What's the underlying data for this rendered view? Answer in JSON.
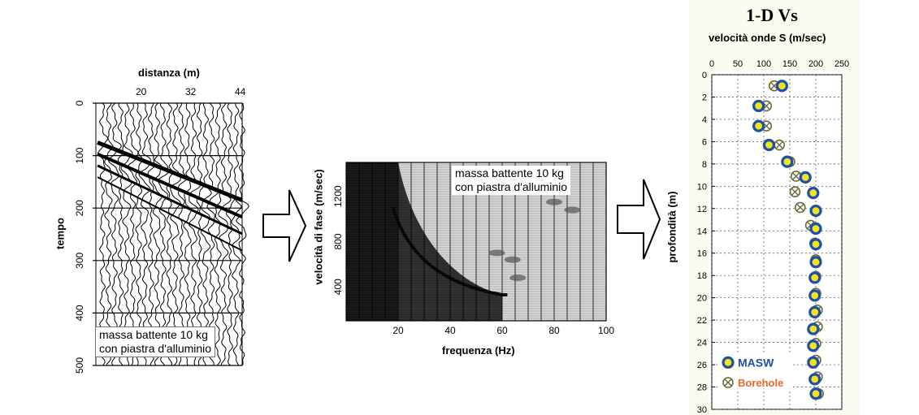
{
  "seismogram": {
    "x_axis_label": "distanza (m)",
    "x_ticks": [
      "20",
      "32",
      "44"
    ],
    "y_axis_label": "tempo",
    "y_ticks": [
      "0",
      "100",
      "200",
      "300",
      "400",
      "500"
    ],
    "note_line1": "massa battente 10 kg",
    "note_line2": "con piastra d'alluminio"
  },
  "dispersion": {
    "y_axis_label": "velocità di fase (m/sec)",
    "y_ticks": [
      "400",
      "800",
      "1200"
    ],
    "x_axis_label": "frequenza (Hz)",
    "x_ticks": [
      "20",
      "40",
      "60",
      "80",
      "100"
    ],
    "note_line1": "massa battente 10 kg",
    "note_line2": "con piastra d'alluminio"
  },
  "profile": {
    "title": "1-D Vs",
    "x_axis_label": "velocità onde S (m/sec)",
    "y_axis_label": "profondità (m)",
    "x_ticks": [
      "0",
      "50",
      "100",
      "150",
      "200",
      "250"
    ],
    "y_ticks": [
      "0",
      "2",
      "4",
      "6",
      "8",
      "10",
      "12",
      "14",
      "16",
      "18",
      "20",
      "22",
      "24",
      "26",
      "28",
      "30"
    ],
    "legend": [
      {
        "label": "MASW",
        "color": "#1f4fa8"
      },
      {
        "label": "Borehole",
        "color": "#e8692a"
      }
    ]
  },
  "chart_data": {
    "type": "scatter",
    "title": "1-D Vs",
    "xlabel": "velocità onde S (m/sec)",
    "ylabel": "profondità (m)",
    "xlim": [
      0,
      250
    ],
    "ylim": [
      0,
      30
    ],
    "y_inverted": true,
    "grid": true,
    "legend_position": "bottom-left",
    "series": [
      {
        "name": "MASW",
        "marker_color": "#1f4fa8",
        "points": [
          {
            "x": 135,
            "y": 1.0
          },
          {
            "x": 90,
            "y": 2.8
          },
          {
            "x": 90,
            "y": 4.6
          },
          {
            "x": 110,
            "y": 6.3
          },
          {
            "x": 145,
            "y": 7.8
          },
          {
            "x": 180,
            "y": 9.2
          },
          {
            "x": 195,
            "y": 10.6
          },
          {
            "x": 200,
            "y": 12.2
          },
          {
            "x": 200,
            "y": 13.8
          },
          {
            "x": 200,
            "y": 15.2
          },
          {
            "x": 200,
            "y": 16.8
          },
          {
            "x": 198,
            "y": 18.2
          },
          {
            "x": 198,
            "y": 19.8
          },
          {
            "x": 198,
            "y": 21.3
          },
          {
            "x": 195,
            "y": 22.8
          },
          {
            "x": 195,
            "y": 24.3
          },
          {
            "x": 195,
            "y": 25.8
          },
          {
            "x": 198,
            "y": 27.3
          },
          {
            "x": 200,
            "y": 28.6
          }
        ]
      },
      {
        "name": "Borehole",
        "marker_color": "#e8692a",
        "points": [
          {
            "x": 120,
            "y": 1.0
          },
          {
            "x": 105,
            "y": 2.8
          },
          {
            "x": 105,
            "y": 4.6
          },
          {
            "x": 130,
            "y": 6.3
          },
          {
            "x": 150,
            "y": 7.8
          },
          {
            "x": 162,
            "y": 9.1
          },
          {
            "x": 160,
            "y": 10.5
          },
          {
            "x": 170,
            "y": 11.9
          },
          {
            "x": 190,
            "y": 13.5
          },
          {
            "x": 198,
            "y": 15.1
          },
          {
            "x": 200,
            "y": 16.6
          },
          {
            "x": 200,
            "y": 18.1
          },
          {
            "x": 200,
            "y": 19.6
          },
          {
            "x": 203,
            "y": 21.1
          },
          {
            "x": 203,
            "y": 22.6
          },
          {
            "x": 200,
            "y": 24.1
          },
          {
            "x": 200,
            "y": 25.6
          },
          {
            "x": 203,
            "y": 27.1
          },
          {
            "x": 205,
            "y": 28.6
          }
        ]
      }
    ]
  }
}
